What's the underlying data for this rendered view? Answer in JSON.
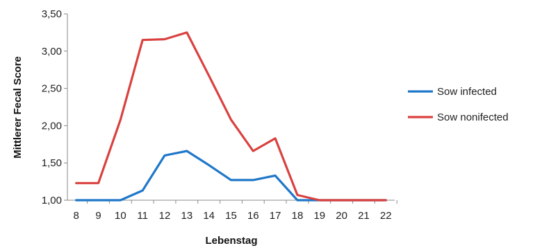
{
  "chart_data": {
    "type": "line",
    "xlabel": "Lebenstag",
    "ylabel": "Mittlerer Fecal Score",
    "x": [
      8,
      9,
      10,
      11,
      12,
      13,
      14,
      15,
      16,
      17,
      18,
      19,
      20,
      21,
      22
    ],
    "x_tick_labels": [
      "8",
      "9",
      "10",
      "11",
      "12",
      "13",
      "14",
      "15",
      "16",
      "17",
      "18",
      "19",
      "20",
      "21",
      "22"
    ],
    "ylim": [
      1.0,
      3.5
    ],
    "y_ticks": [
      1.0,
      1.5,
      2.0,
      2.5,
      3.0,
      3.5
    ],
    "y_tick_labels": [
      "1,00",
      "1,50",
      "2,00",
      "2,50",
      "3,00",
      "3,50"
    ],
    "grid": false,
    "legend_position": "right",
    "series": [
      {
        "name": "Sow infected",
        "color": "#1f77c9",
        "values": [
          1.0,
          1.0,
          1.0,
          1.13,
          1.6,
          1.66,
          1.47,
          1.27,
          1.27,
          1.33,
          1.0,
          1.0,
          1.0,
          1.0,
          1.0
        ]
      },
      {
        "name": "Sow nonifected",
        "color": "#d9413f",
        "values": [
          1.23,
          1.23,
          2.08,
          3.15,
          3.16,
          3.25,
          2.67,
          2.08,
          1.66,
          1.83,
          1.07,
          1.0,
          1.0,
          1.0,
          1.0
        ]
      }
    ]
  }
}
